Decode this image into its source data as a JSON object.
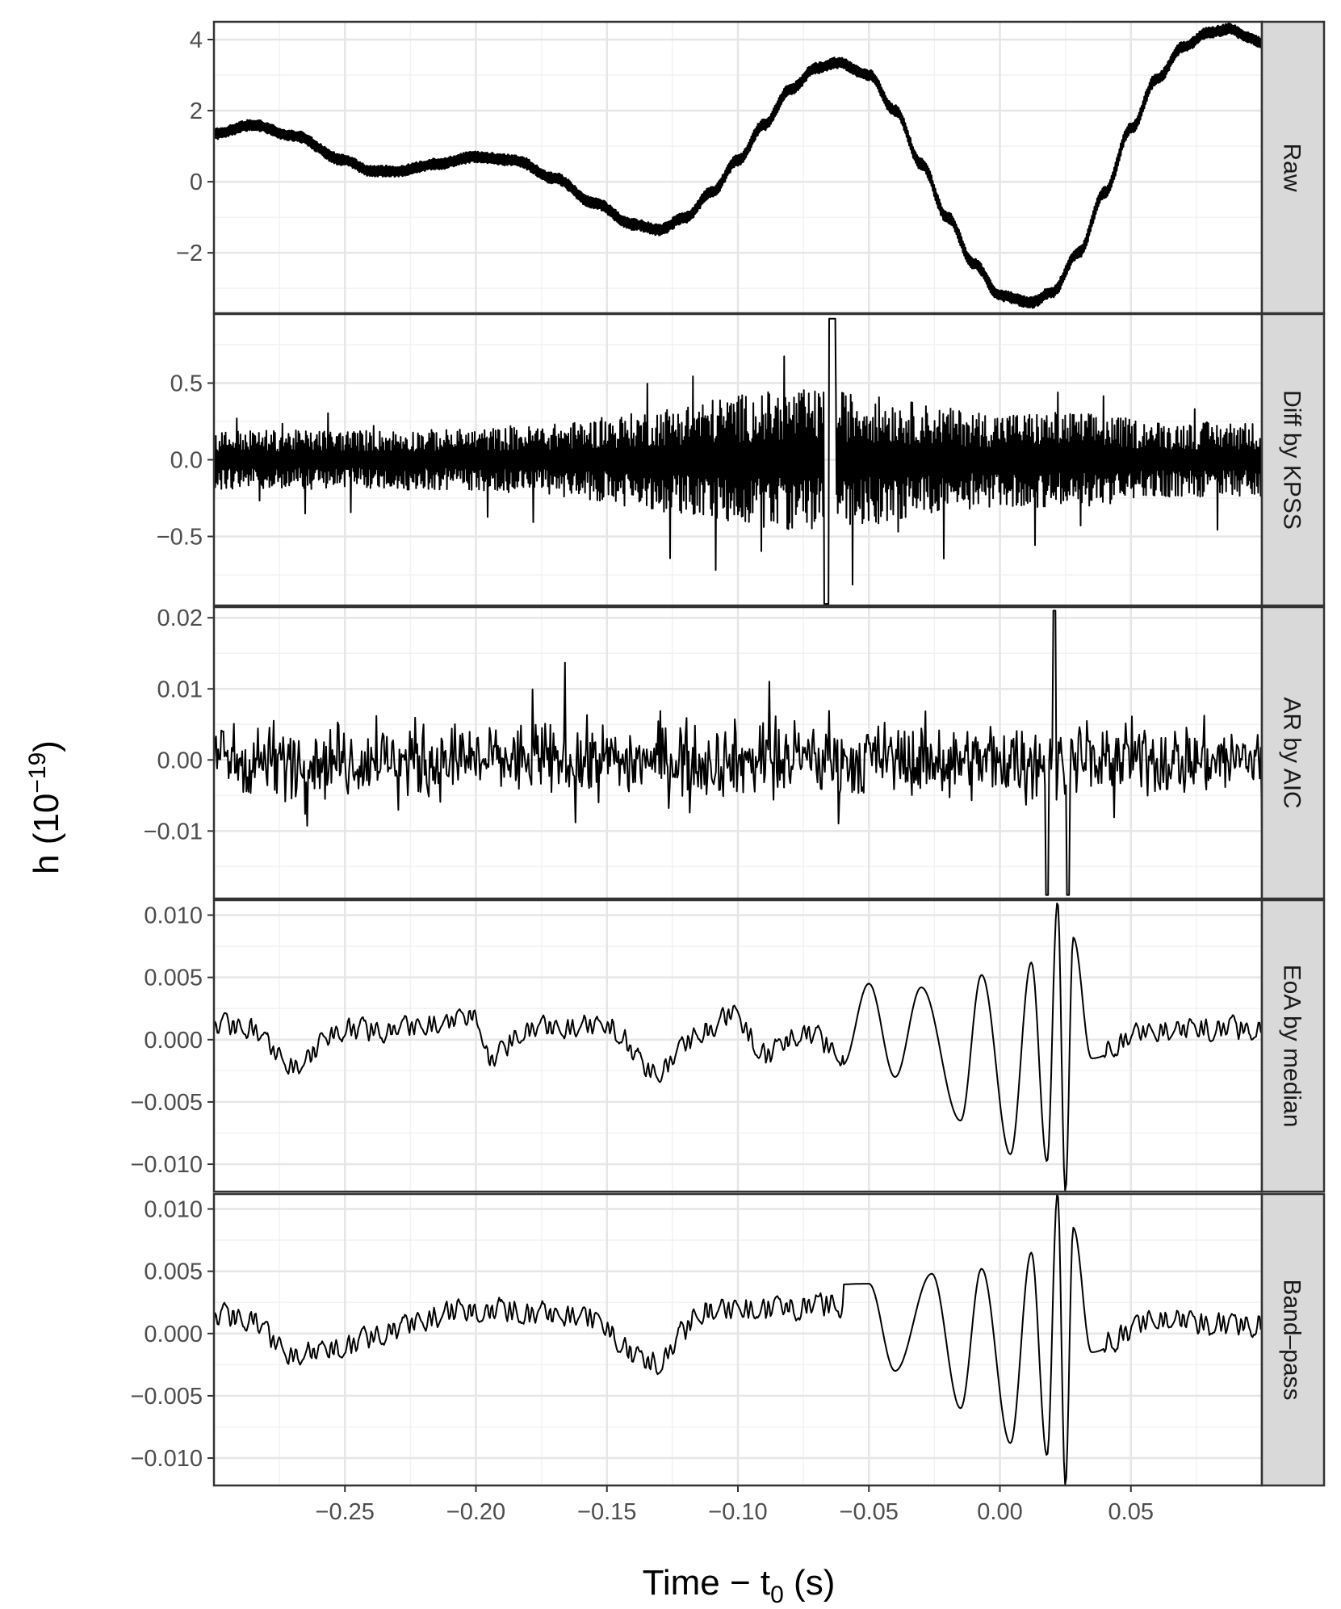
{
  "chart_data": {
    "type": "line",
    "layout": "faceted-vertical",
    "xlabel": {
      "prefix": "Time − t",
      "sub": "0",
      "suffix": " (s)"
    },
    "ylabel": {
      "prefix": "h (10",
      "sup": "−19",
      "suffix": ")"
    },
    "xlim": [
      -0.3,
      0.1
    ],
    "x_ticks": [
      -0.25,
      -0.2,
      -0.15,
      -0.1,
      -0.05,
      0.0,
      0.05
    ],
    "x_tick_labels": [
      "−0.25",
      "−0.20",
      "−0.15",
      "−0.10",
      "−0.05",
      "0.00",
      "0.05"
    ],
    "grid": true,
    "line_color": "#000000",
    "panels": [
      {
        "strip": "Raw",
        "ylim": [
          -3.7,
          4.5
        ],
        "y_ticks": [
          -2,
          0,
          2,
          4
        ],
        "y_tick_labels": [
          "−2",
          "0",
          "2",
          "4"
        ],
        "trend_x": [
          -0.3,
          -0.285,
          -0.27,
          -0.25,
          -0.24,
          -0.23,
          -0.215,
          -0.2,
          -0.185,
          -0.17,
          -0.155,
          -0.14,
          -0.13,
          -0.12,
          -0.11,
          -0.1,
          -0.09,
          -0.08,
          -0.07,
          -0.062,
          -0.05,
          -0.04,
          -0.03,
          -0.02,
          -0.01,
          0.0,
          0.012,
          0.02,
          0.03,
          0.04,
          0.05,
          0.06,
          0.07,
          0.08,
          0.088,
          0.095,
          0.1
        ],
        "trend_y": [
          1.35,
          1.6,
          1.3,
          0.6,
          0.3,
          0.3,
          0.5,
          0.7,
          0.6,
          0.1,
          -0.6,
          -1.2,
          -1.35,
          -1.0,
          -0.3,
          0.6,
          1.6,
          2.6,
          3.2,
          3.35,
          3.0,
          2.0,
          0.5,
          -1.0,
          -2.3,
          -3.2,
          -3.4,
          -3.1,
          -2.0,
          -0.3,
          1.5,
          2.9,
          3.8,
          4.2,
          4.3,
          4.05,
          3.9
        ],
        "noise_amplitude": 0.15
      },
      {
        "strip": "Diff by KPSS",
        "ylim": [
          -0.95,
          0.95
        ],
        "y_ticks": [
          -0.5,
          0.0,
          0.5
        ],
        "y_tick_labels": [
          "−0.5",
          "0.0",
          "0.5"
        ],
        "noise_amplitude": 0.35,
        "peak_max": 0.92,
        "peak_min": -0.94
      },
      {
        "strip": "AR by AIC",
        "ylim": [
          -0.0195,
          0.0215
        ],
        "y_ticks": [
          -0.01,
          0.0,
          0.01,
          0.02
        ],
        "y_tick_labels": [
          "−0.01",
          "0.00",
          "0.01",
          "0.02"
        ],
        "noise_amplitude": 0.0045,
        "burst_peak": 0.021,
        "burst_trough": -0.019
      },
      {
        "strip": "EoA by median",
        "ylim": [
          -0.0122,
          0.0112
        ],
        "y_ticks": [
          -0.01,
          -0.005,
          0.0,
          0.005,
          0.01
        ],
        "y_tick_labels": [
          "−0.010",
          "−0.005",
          "0.000",
          "0.005",
          "0.010"
        ],
        "peak_x": [
          -0.288,
          -0.27,
          -0.25,
          -0.24,
          -0.22,
          -0.2,
          -0.195,
          -0.18,
          -0.15,
          -0.133,
          -0.112,
          -0.102,
          -0.09,
          -0.075,
          -0.06,
          -0.05,
          -0.04,
          -0.03,
          -0.015,
          -0.007,
          0.004,
          0.012,
          0.018,
          0.022,
          0.025,
          0.028,
          0.035,
          0.06,
          0.09
        ],
        "peak_y": [
          0.0018,
          -0.0035,
          0.0015,
          0.0012,
          0.0018,
          0.0032,
          -0.0028,
          0.0015,
          0.0018,
          -0.0042,
          0.0012,
          0.0035,
          -0.002,
          0.001,
          -0.002,
          0.0045,
          -0.003,
          0.0042,
          -0.0065,
          0.0052,
          -0.0092,
          0.0062,
          -0.0098,
          0.0111,
          -0.0122,
          0.0082,
          -0.0015,
          0.0012,
          0.0015
        ],
        "noise_amplitude": 0.0012
      },
      {
        "strip": "Band–pass",
        "ylim": [
          -0.0122,
          0.0112
        ],
        "y_ticks": [
          -0.01,
          -0.005,
          0.0,
          0.005,
          0.01
        ],
        "y_tick_labels": [
          "−0.010",
          "−0.005",
          "0.000",
          "0.005",
          "0.010"
        ],
        "peak_x": [
          -0.288,
          -0.27,
          -0.2,
          -0.16,
          -0.133,
          -0.112,
          -0.05,
          -0.04,
          -0.026,
          -0.015,
          -0.007,
          0.004,
          0.012,
          0.018,
          0.022,
          0.025,
          0.028,
          0.035,
          0.06,
          0.09
        ],
        "peak_y": [
          0.0022,
          -0.0028,
          0.003,
          0.0025,
          -0.004,
          0.003,
          0.004,
          -0.003,
          0.0048,
          -0.006,
          0.0052,
          -0.0088,
          0.0065,
          -0.0098,
          0.0113,
          -0.0122,
          0.0085,
          -0.0015,
          0.0018,
          0.0012
        ],
        "noise_amplitude": 0.0013
      }
    ]
  }
}
